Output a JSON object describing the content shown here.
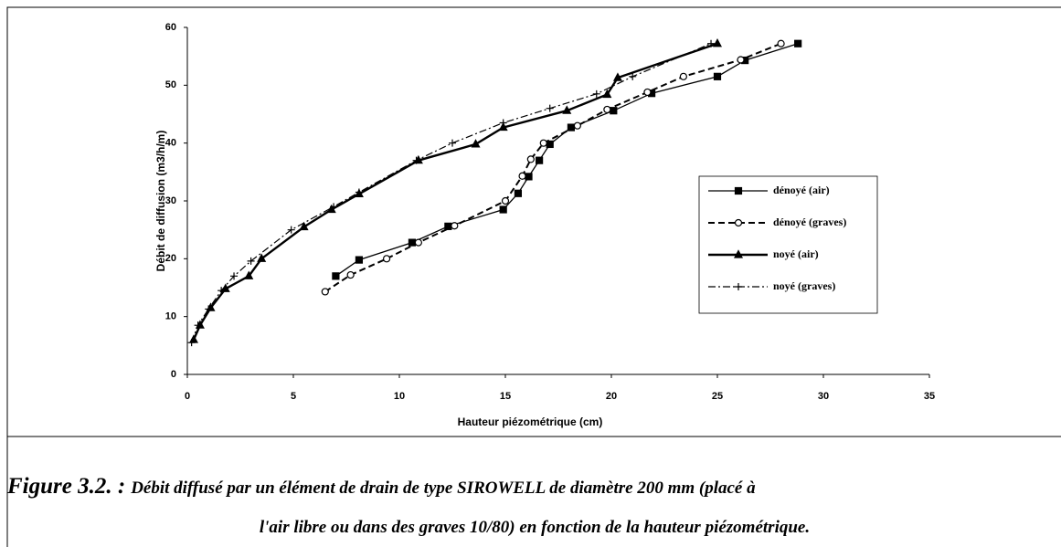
{
  "chart_data": {
    "type": "line",
    "xlabel": "Hauteur piézométrique (cm)",
    "ylabel": "Débit de diffusion (m3/h/m)",
    "xlim": [
      0,
      35
    ],
    "xticks": [
      0,
      5,
      10,
      15,
      20,
      25,
      30,
      35
    ],
    "ylim": [
      0,
      60
    ],
    "yticks": [
      0,
      10,
      20,
      30,
      40,
      50,
      60
    ],
    "grid": false,
    "legend": "right",
    "series": [
      {
        "name": "dénoyé (air)",
        "color": "#000000",
        "marker": "square",
        "dash": "solid",
        "x": [
          7,
          8.1,
          10.6,
          12.3,
          14.9,
          15.6,
          16.1,
          16.6,
          17.1,
          18.1,
          20.1,
          21.9,
          25,
          26.3,
          28.8
        ],
        "values": [
          17,
          19.8,
          22.8,
          25.6,
          28.5,
          31.3,
          34.2,
          37,
          39.8,
          42.7,
          45.6,
          48.6,
          51.5,
          54.3,
          57.2
        ]
      },
      {
        "name": "dénoyé (graves)",
        "color": "#000000",
        "marker": "circle",
        "dash": "dashed",
        "x": [
          6.5,
          7.7,
          9.4,
          10.9,
          12.6,
          15,
          15.8,
          16.2,
          16.8,
          18.4,
          19.8,
          21.7,
          23.4,
          26.1,
          28
        ],
        "values": [
          14.3,
          17.2,
          20,
          22.8,
          25.7,
          30,
          34.3,
          37.2,
          40,
          43,
          45.8,
          48.8,
          51.5,
          54.4,
          57.2
        ]
      },
      {
        "name": "noyé (air)",
        "color": "#000000",
        "marker": "triangle",
        "dash": "thick",
        "x": [
          0.3,
          0.6,
          1.1,
          1.8,
          2.9,
          3.5,
          5.5,
          6.8,
          8.1,
          10.9,
          13.6,
          14.9,
          17.9,
          19.8,
          20.3,
          25
        ],
        "values": [
          6,
          8.5,
          11.5,
          14.8,
          17,
          20,
          25.5,
          28.5,
          31.2,
          37,
          39.8,
          42.7,
          45.6,
          48.4,
          51.3,
          57.2
        ]
      },
      {
        "name": "noyé (graves)",
        "color": "#000000",
        "marker": "plus",
        "dash": "dashdot",
        "x": [
          0.2,
          0.5,
          1,
          1.6,
          2.2,
          3,
          4.9,
          6.9,
          8.1,
          10.8,
          12.5,
          14.9,
          17.1,
          19.3,
          21,
          24.7
        ],
        "values": [
          5.5,
          8.5,
          11.3,
          14.5,
          17,
          19.6,
          25,
          29,
          31.5,
          37,
          40,
          43.5,
          46,
          48.5,
          51.5,
          57.2
        ]
      }
    ],
    "caption_label": "Figure 3.2. :",
    "caption_line1": "Débit diffusé par un élément de drain de type SIROWELL de diamètre 200 mm (placé à",
    "caption_line2": "l'air libre ou dans des graves 10/80) en fonction de la hauteur piézométrique."
  }
}
